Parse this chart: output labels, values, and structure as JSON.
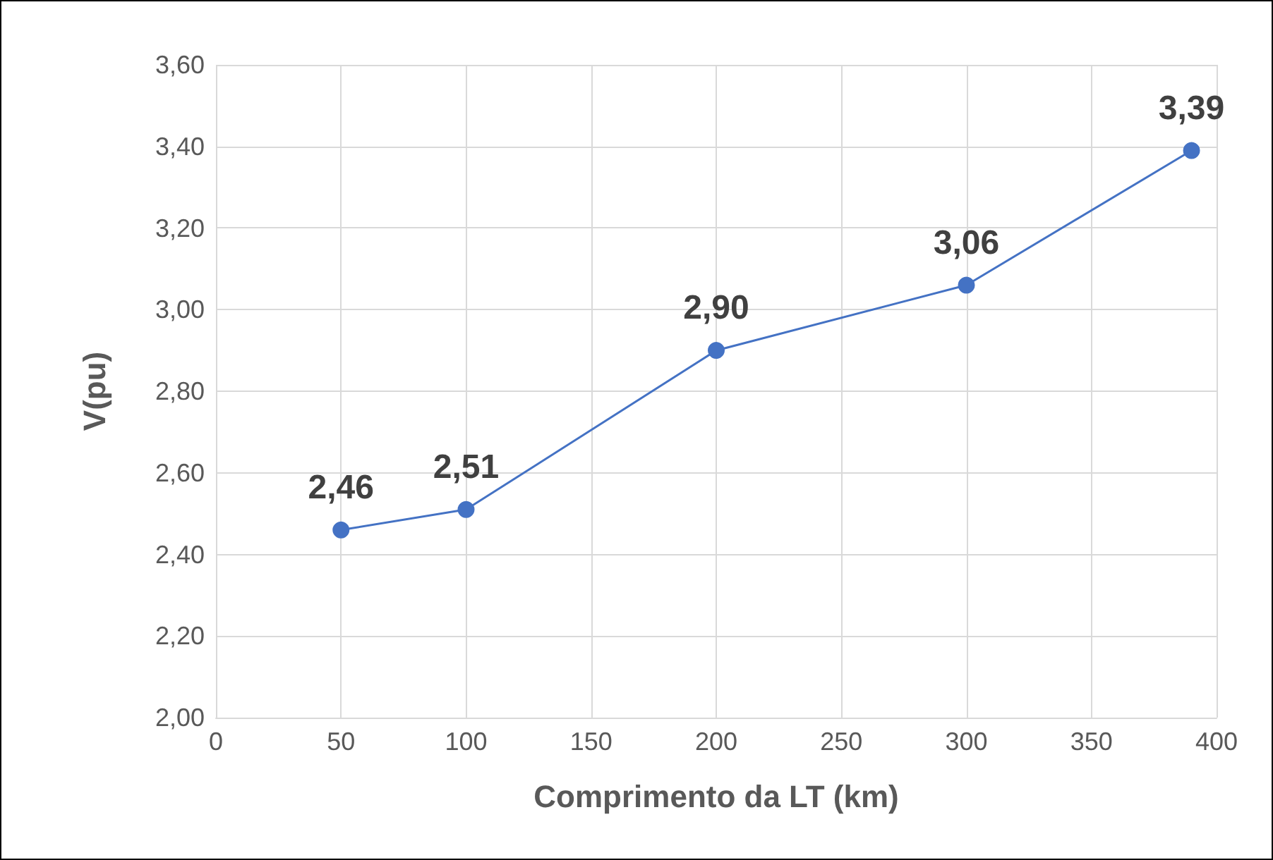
{
  "chart_data": {
    "type": "line",
    "xlabel": "Comprimento da LT (km)",
    "ylabel": "V(pu)",
    "x": [
      50,
      100,
      200,
      300,
      390
    ],
    "series": [
      {
        "color": "#4472c4",
        "values": [
          2.46,
          2.51,
          2.9,
          3.06,
          3.39
        ],
        "value_labels": [
          "2,46",
          "2,51",
          "2,90",
          "3,06",
          "3,39"
        ]
      }
    ],
    "xlim": [
      0,
      400
    ],
    "xticks": [
      0,
      50,
      100,
      150,
      200,
      250,
      300,
      350,
      400
    ],
    "ylim": [
      2,
      3.6
    ],
    "yticks": [
      {
        "value": 2,
        "label": "2,00"
      },
      {
        "value": 2.2,
        "label": "2,20"
      },
      {
        "value": 2.4,
        "label": "2,40"
      },
      {
        "value": 2.6,
        "label": "2,60"
      },
      {
        "value": 2.8,
        "label": "2,80"
      },
      {
        "value": 3,
        "label": "3,00"
      },
      {
        "value": 3.2,
        "label": "3,20"
      },
      {
        "value": 3.4,
        "label": "3,40"
      },
      {
        "value": 3.6,
        "label": "3,60"
      }
    ],
    "grid": true,
    "marker": "circle",
    "line_style": "solid"
  }
}
